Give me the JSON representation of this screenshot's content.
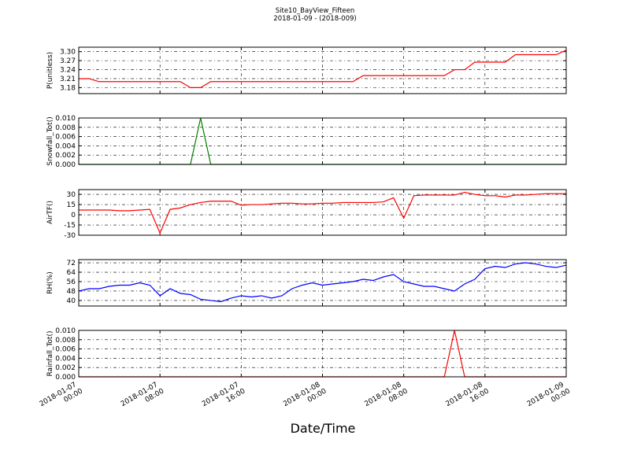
{
  "chart_data": [
    {
      "type": "line",
      "title": "Site10_BayView_Fifteen",
      "subtitle": "2018-01-09 - (2018-009)",
      "ylabel": "P(unitless)",
      "color": "#ff0000",
      "grid": true,
      "xlim": [
        "2018-01-07 00:00",
        "2018-01-09 00:00"
      ],
      "xticks": [
        "2018-01-07 00:00",
        "2018-01-07 08:00",
        "2018-01-07 16:00",
        "2018-01-08 00:00",
        "2018-01-08 08:00",
        "2018-01-08 16:00",
        "2018-01-09 00:00"
      ],
      "ylim": [
        3.16,
        3.315
      ],
      "yticks": [
        {
          "value": 3.3,
          "label": "3.30"
        },
        {
          "value": 3.27,
          "label": "3.27"
        },
        {
          "value": 3.24,
          "label": "3.24"
        },
        {
          "value": 3.21,
          "label": "3.21"
        },
        {
          "value": 3.18,
          "label": "3.18"
        }
      ],
      "x": [
        "2018-01-07 00:00",
        "2018-01-07 01:00",
        "2018-01-07 02:00",
        "2018-01-07 03:00",
        "2018-01-07 04:00",
        "2018-01-07 05:00",
        "2018-01-07 06:00",
        "2018-01-07 07:00",
        "2018-01-07 08:00",
        "2018-01-07 09:00",
        "2018-01-07 10:00",
        "2018-01-07 11:00",
        "2018-01-07 12:00",
        "2018-01-07 13:00",
        "2018-01-07 14:00",
        "2018-01-07 15:00",
        "2018-01-07 16:00",
        "2018-01-07 17:00",
        "2018-01-07 18:00",
        "2018-01-07 19:00",
        "2018-01-07 20:00",
        "2018-01-07 21:00",
        "2018-01-07 22:00",
        "2018-01-07 23:00",
        "2018-01-08 00:00",
        "2018-01-08 01:00",
        "2018-01-08 02:00",
        "2018-01-08 03:00",
        "2018-01-08 04:00",
        "2018-01-08 05:00",
        "2018-01-08 06:00",
        "2018-01-08 07:00",
        "2018-01-08 08:00",
        "2018-01-08 09:00",
        "2018-01-08 10:00",
        "2018-01-08 11:00",
        "2018-01-08 12:00",
        "2018-01-08 13:00",
        "2018-01-08 14:00",
        "2018-01-08 15:00",
        "2018-01-08 16:00",
        "2018-01-08 17:00",
        "2018-01-08 18:00",
        "2018-01-08 19:00",
        "2018-01-08 20:00",
        "2018-01-08 21:00",
        "2018-01-08 22:00",
        "2018-01-08 23:00",
        "2018-01-09 00:00"
      ],
      "values": [
        3.21,
        3.21,
        3.2,
        3.2,
        3.2,
        3.2,
        3.2,
        3.2,
        3.2,
        3.2,
        3.2,
        3.18,
        3.18,
        3.2,
        3.2,
        3.2,
        3.2,
        3.2,
        3.2,
        3.2,
        3.2,
        3.2,
        3.2,
        3.2,
        3.2,
        3.2,
        3.2,
        3.2,
        3.22,
        3.22,
        3.22,
        3.22,
        3.22,
        3.22,
        3.22,
        3.22,
        3.22,
        3.24,
        3.24,
        3.265,
        3.265,
        3.265,
        3.265,
        3.29,
        3.29,
        3.29,
        3.29,
        3.29,
        3.305
      ]
    },
    {
      "type": "line",
      "ylabel": "Snowfall_Tot()",
      "color": "#008000",
      "grid": true,
      "xlim": [
        "2018-01-07 00:00",
        "2018-01-09 00:00"
      ],
      "xticks": [
        "2018-01-07 00:00",
        "2018-01-07 08:00",
        "2018-01-07 16:00",
        "2018-01-08 00:00",
        "2018-01-08 08:00",
        "2018-01-08 16:00",
        "2018-01-09 00:00"
      ],
      "ylim": [
        0,
        0.01
      ],
      "yticks": [
        {
          "value": 0.01,
          "label": "0.010"
        },
        {
          "value": 0.008,
          "label": "0.008"
        },
        {
          "value": 0.006,
          "label": "0.006"
        },
        {
          "value": 0.004,
          "label": "0.004"
        },
        {
          "value": 0.002,
          "label": "0.002"
        },
        {
          "value": 0,
          "label": "0.000"
        }
      ],
      "x": [
        "2018-01-07 00:00",
        "2018-01-07 01:00",
        "2018-01-07 02:00",
        "2018-01-07 03:00",
        "2018-01-07 04:00",
        "2018-01-07 05:00",
        "2018-01-07 06:00",
        "2018-01-07 07:00",
        "2018-01-07 08:00",
        "2018-01-07 09:00",
        "2018-01-07 10:00",
        "2018-01-07 11:00",
        "2018-01-07 12:00",
        "2018-01-07 13:00",
        "2018-01-07 14:00",
        "2018-01-07 15:00",
        "2018-01-07 16:00",
        "2018-01-07 17:00",
        "2018-01-07 18:00",
        "2018-01-07 19:00",
        "2018-01-07 20:00",
        "2018-01-07 21:00",
        "2018-01-07 22:00",
        "2018-01-07 23:00",
        "2018-01-08 00:00",
        "2018-01-08 01:00",
        "2018-01-08 02:00",
        "2018-01-08 03:00",
        "2018-01-08 04:00",
        "2018-01-08 05:00",
        "2018-01-08 06:00",
        "2018-01-08 07:00",
        "2018-01-08 08:00",
        "2018-01-08 09:00",
        "2018-01-08 10:00",
        "2018-01-08 11:00",
        "2018-01-08 12:00",
        "2018-01-08 13:00",
        "2018-01-08 14:00",
        "2018-01-08 15:00",
        "2018-01-08 16:00",
        "2018-01-08 17:00",
        "2018-01-08 18:00",
        "2018-01-08 19:00",
        "2018-01-08 20:00",
        "2018-01-08 21:00",
        "2018-01-08 22:00",
        "2018-01-08 23:00",
        "2018-01-09 00:00"
      ],
      "values": [
        0,
        0,
        0,
        0,
        0,
        0,
        0,
        0,
        0,
        0,
        0,
        0,
        0.01,
        0,
        0,
        0,
        0,
        0,
        0,
        0,
        0,
        0,
        0,
        0,
        0,
        0,
        0,
        0,
        0,
        0,
        0,
        0,
        0,
        0,
        0,
        0,
        0,
        0,
        0,
        0,
        0,
        0,
        0,
        0,
        0,
        0,
        0,
        0,
        0
      ]
    },
    {
      "type": "line",
      "ylabel": "AirTF()",
      "color": "#ff0000",
      "grid": true,
      "xlim": [
        "2018-01-07 00:00",
        "2018-01-09 00:00"
      ],
      "xticks": [
        "2018-01-07 00:00",
        "2018-01-07 08:00",
        "2018-01-07 16:00",
        "2018-01-08 00:00",
        "2018-01-08 08:00",
        "2018-01-08 16:00",
        "2018-01-09 00:00"
      ],
      "ylim": [
        -30,
        37
      ],
      "yticks": [
        30,
        15,
        0,
        -15,
        -30
      ],
      "x": [
        "2018-01-07 00:00",
        "2018-01-07 01:00",
        "2018-01-07 02:00",
        "2018-01-07 03:00",
        "2018-01-07 04:00",
        "2018-01-07 05:00",
        "2018-01-07 06:00",
        "2018-01-07 07:00",
        "2018-01-07 08:00",
        "2018-01-07 09:00",
        "2018-01-07 10:00",
        "2018-01-07 11:00",
        "2018-01-07 12:00",
        "2018-01-07 13:00",
        "2018-01-07 14:00",
        "2018-01-07 15:00",
        "2018-01-07 16:00",
        "2018-01-07 17:00",
        "2018-01-07 18:00",
        "2018-01-07 19:00",
        "2018-01-07 20:00",
        "2018-01-07 21:00",
        "2018-01-07 22:00",
        "2018-01-07 23:00",
        "2018-01-08 00:00",
        "2018-01-08 01:00",
        "2018-01-08 02:00",
        "2018-01-08 03:00",
        "2018-01-08 04:00",
        "2018-01-08 05:00",
        "2018-01-08 06:00",
        "2018-01-08 07:00",
        "2018-01-08 08:00",
        "2018-01-08 09:00",
        "2018-01-08 10:00",
        "2018-01-08 11:00",
        "2018-01-08 12:00",
        "2018-01-08 13:00",
        "2018-01-08 14:00",
        "2018-01-08 15:00",
        "2018-01-08 16:00",
        "2018-01-08 17:00",
        "2018-01-08 18:00",
        "2018-01-08 19:00",
        "2018-01-08 20:00",
        "2018-01-08 21:00",
        "2018-01-08 22:00",
        "2018-01-08 23:00",
        "2018-01-09 00:00"
      ],
      "values": [
        7,
        7,
        7,
        7,
        6,
        6,
        7,
        8,
        -27,
        8,
        10,
        15,
        18,
        20,
        20,
        20,
        14,
        15,
        15,
        16,
        17,
        17,
        16,
        16,
        17,
        17,
        18,
        18,
        18,
        18,
        19,
        25,
        -5,
        28,
        29,
        29,
        29,
        29,
        33,
        30,
        28,
        28,
        26,
        29,
        29,
        30,
        31,
        31,
        31
      ]
    },
    {
      "type": "line",
      "ylabel": "RH(%)",
      "color": "#0000ff",
      "grid": true,
      "xlim": [
        "2018-01-07 00:00",
        "2018-01-09 00:00"
      ],
      "xticks": [
        "2018-01-07 00:00",
        "2018-01-07 08:00",
        "2018-01-07 16:00",
        "2018-01-08 00:00",
        "2018-01-08 08:00",
        "2018-01-08 16:00",
        "2018-01-09 00:00"
      ],
      "ylim": [
        35.3,
        74.7
      ],
      "yticks": [
        72,
        64,
        56,
        48,
        40
      ],
      "x": [
        "2018-01-07 00:00",
        "2018-01-07 01:00",
        "2018-01-07 02:00",
        "2018-01-07 03:00",
        "2018-01-07 04:00",
        "2018-01-07 05:00",
        "2018-01-07 06:00",
        "2018-01-07 07:00",
        "2018-01-07 08:00",
        "2018-01-07 09:00",
        "2018-01-07 10:00",
        "2018-01-07 11:00",
        "2018-01-07 12:00",
        "2018-01-07 13:00",
        "2018-01-07 14:00",
        "2018-01-07 15:00",
        "2018-01-07 16:00",
        "2018-01-07 17:00",
        "2018-01-07 18:00",
        "2018-01-07 19:00",
        "2018-01-07 20:00",
        "2018-01-07 21:00",
        "2018-01-07 22:00",
        "2018-01-07 23:00",
        "2018-01-08 00:00",
        "2018-01-08 01:00",
        "2018-01-08 02:00",
        "2018-01-08 03:00",
        "2018-01-08 04:00",
        "2018-01-08 05:00",
        "2018-01-08 06:00",
        "2018-01-08 07:00",
        "2018-01-08 08:00",
        "2018-01-08 09:00",
        "2018-01-08 10:00",
        "2018-01-08 11:00",
        "2018-01-08 12:00",
        "2018-01-08 13:00",
        "2018-01-08 14:00",
        "2018-01-08 15:00",
        "2018-01-08 16:00",
        "2018-01-08 17:00",
        "2018-01-08 18:00",
        "2018-01-08 19:00",
        "2018-01-08 20:00",
        "2018-01-08 21:00",
        "2018-01-08 22:00",
        "2018-01-08 23:00",
        "2018-01-09 00:00"
      ],
      "values": [
        48,
        50,
        50,
        52,
        53,
        53,
        55,
        53,
        44,
        50,
        46,
        45,
        41,
        40,
        39,
        42,
        44,
        43,
        44,
        42,
        44,
        50,
        53,
        55,
        53,
        54,
        55,
        56,
        58,
        57,
        60,
        62,
        56,
        54,
        52,
        52,
        50,
        48,
        54,
        58,
        67,
        69,
        68,
        71,
        72,
        71,
        69,
        68,
        70
      ]
    },
    {
      "type": "line",
      "ylabel": "Rainfall_Tot()",
      "xlabel": "Date/Time",
      "color": "#ff0000",
      "grid": true,
      "xlim": [
        "2018-01-07 00:00",
        "2018-01-09 00:00"
      ],
      "xticks": [
        "2018-01-07 00:00",
        "2018-01-07 08:00",
        "2018-01-07 16:00",
        "2018-01-08 00:00",
        "2018-01-08 08:00",
        "2018-01-08 16:00",
        "2018-01-09 00:00"
      ],
      "ylim": [
        0,
        0.01
      ],
      "yticks": [
        {
          "value": 0.01,
          "label": "0.010"
        },
        {
          "value": 0.008,
          "label": "0.008"
        },
        {
          "value": 0.006,
          "label": "0.006"
        },
        {
          "value": 0.004,
          "label": "0.004"
        },
        {
          "value": 0.002,
          "label": "0.002"
        },
        {
          "value": 0,
          "label": "0.000"
        }
      ],
      "x": [
        "2018-01-07 00:00",
        "2018-01-07 01:00",
        "2018-01-07 02:00",
        "2018-01-07 03:00",
        "2018-01-07 04:00",
        "2018-01-07 05:00",
        "2018-01-07 06:00",
        "2018-01-07 07:00",
        "2018-01-07 08:00",
        "2018-01-07 09:00",
        "2018-01-07 10:00",
        "2018-01-07 11:00",
        "2018-01-07 12:00",
        "2018-01-07 13:00",
        "2018-01-07 14:00",
        "2018-01-07 15:00",
        "2018-01-07 16:00",
        "2018-01-07 17:00",
        "2018-01-07 18:00",
        "2018-01-07 19:00",
        "2018-01-07 20:00",
        "2018-01-07 21:00",
        "2018-01-07 22:00",
        "2018-01-07 23:00",
        "2018-01-08 00:00",
        "2018-01-08 01:00",
        "2018-01-08 02:00",
        "2018-01-08 03:00",
        "2018-01-08 04:00",
        "2018-01-08 05:00",
        "2018-01-08 06:00",
        "2018-01-08 07:00",
        "2018-01-08 08:00",
        "2018-01-08 09:00",
        "2018-01-08 10:00",
        "2018-01-08 11:00",
        "2018-01-08 12:00",
        "2018-01-08 13:00",
        "2018-01-08 14:00",
        "2018-01-08 15:00",
        "2018-01-08 16:00",
        "2018-01-08 17:00",
        "2018-01-08 18:00",
        "2018-01-08 19:00",
        "2018-01-08 20:00",
        "2018-01-08 21:00",
        "2018-01-08 22:00",
        "2018-01-08 23:00",
        "2018-01-09 00:00"
      ],
      "values": [
        0,
        0,
        0,
        0,
        0,
        0,
        0,
        0,
        0,
        0,
        0,
        0,
        0,
        0,
        0,
        0,
        0,
        0,
        0,
        0,
        0,
        0,
        0,
        0,
        0,
        0,
        0,
        0,
        0,
        0,
        0,
        0,
        0,
        0,
        0,
        0,
        0,
        0.01,
        0,
        0,
        0,
        0,
        0,
        0,
        0,
        0,
        0,
        0,
        0
      ]
    }
  ]
}
